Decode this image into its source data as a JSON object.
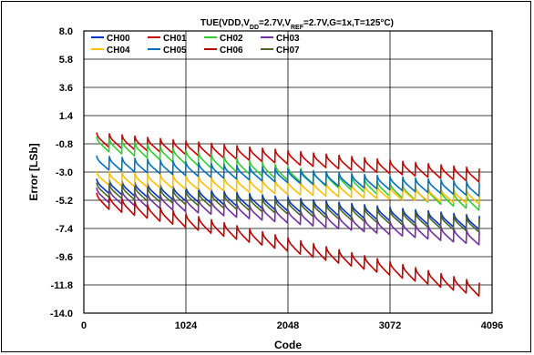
{
  "chart_data": {
    "type": "line",
    "title": {
      "parts": [
        {
          "text": "TUE(VDD,V"
        },
        {
          "text": "DD",
          "sub": true
        },
        {
          "text": "=2.7V,V"
        },
        {
          "text": "REF",
          "sub": true
        },
        {
          "text": "=2.7V,G=1x,T=125°C)"
        }
      ]
    },
    "xlabel": "Code",
    "ylabel": "Error [LSb]",
    "xlim": [
      0,
      4096
    ],
    "ylim": [
      -14.0,
      8.0
    ],
    "xticks": [
      0,
      1024,
      2048,
      3072,
      4096
    ],
    "xtick_labels": [
      "0",
      "1024",
      "2048",
      "3072",
      "4096"
    ],
    "yticks": [
      8.0,
      5.8,
      3.6,
      1.4,
      -0.8,
      -3.0,
      -5.2,
      -7.4,
      -9.6,
      -11.8,
      -14.0
    ],
    "ytick_labels": [
      "8.0",
      "5.8",
      "3.6",
      "1.4",
      "-0.8",
      "-3.0",
      "-5.2",
      "-7.4",
      "-9.6",
      "-11.8",
      "-14.0"
    ],
    "grid": true,
    "legend_position": "top-left inside",
    "sawtooth_period_codes": 128,
    "x_start": 128,
    "x_end": 3968,
    "series": [
      {
        "name": "CH00",
        "color": "#0033cc",
        "start": -4.2,
        "end": -7.1,
        "amplitude": 0.8
      },
      {
        "name": "CH01",
        "color": "#cc0000",
        "start": -0.6,
        "end": -3.4,
        "amplitude": 0.8
      },
      {
        "name": "CH02",
        "color": "#33cc33",
        "start": -0.9,
        "end": -5.6,
        "amplitude": 0.8
      },
      {
        "name": "CH03",
        "color": "#7030a0",
        "start": -4.9,
        "end": -8.3,
        "amplitude": 0.8
      },
      {
        "name": "CH04",
        "color": "#ffc000",
        "start": -3.6,
        "end": -5.1,
        "amplitude": 0.8
      },
      {
        "name": "CH05",
        "color": "#0070c0",
        "start": -2.4,
        "end": -4.5,
        "amplitude": 0.8
      },
      {
        "name": "CH06",
        "color": "#c00000",
        "start": -5.3,
        "end": -12.3,
        "amplitude": 0.8
      },
      {
        "name": "CH07",
        "color": "#4f6228",
        "start": -4.5,
        "end": -7.3,
        "amplitude": 0.8
      }
    ]
  }
}
